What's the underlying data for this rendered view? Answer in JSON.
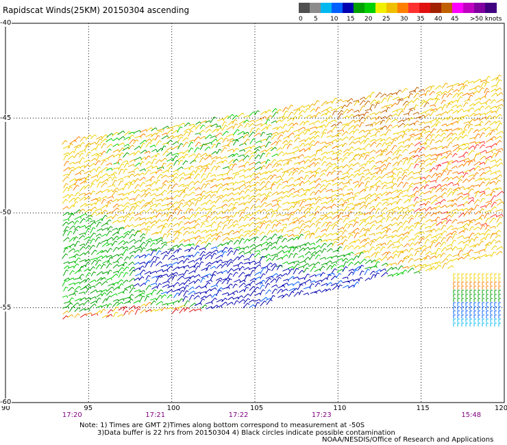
{
  "title": "Rapidscat Winds(25KM) 20150304 ascending",
  "legend": {
    "labels": [
      "0",
      "5",
      "10",
      "15",
      "20",
      "25",
      "30",
      "35",
      "40",
      "45",
      ">50 knots"
    ],
    "colors": [
      "#505050",
      "#8c8c8c",
      "#00b8f0",
      "#0060ff",
      "#0000b0",
      "#00a000",
      "#00d000",
      "#f0f000",
      "#f0c000",
      "#ff8000",
      "#ff3030",
      "#e01010",
      "#a02000",
      "#c06000",
      "#ff00ff",
      "#c000c0",
      "#8000a0",
      "#400080"
    ]
  },
  "axes": {
    "x_ticks": [
      "90",
      "95",
      "100",
      "105",
      "110",
      "115",
      "120"
    ],
    "y_ticks": [
      "-40",
      "-45",
      "-50",
      "-55",
      "-60"
    ],
    "lon_range": [
      90,
      120
    ],
    "lat_range": [
      -60,
      -40
    ]
  },
  "times": [
    {
      "label": "17:20",
      "lon": 93.5
    },
    {
      "label": "17:21",
      "lon": 98.5
    },
    {
      "label": "17:22",
      "lon": 103.5
    },
    {
      "label": "17:23",
      "lon": 108.5
    },
    {
      "label": "15:48",
      "lon": 117.5
    }
  ],
  "notes": {
    "line1": "Note: 1) Times are GMT 2)Times along bottom correspond to measurement at -50S",
    "line2": "3)Data buffer is 22 hrs from 20150304 4) Black circles indicate possible contamination"
  },
  "credit": "NOAA/NESDIS/Office of Research and Applications"
}
